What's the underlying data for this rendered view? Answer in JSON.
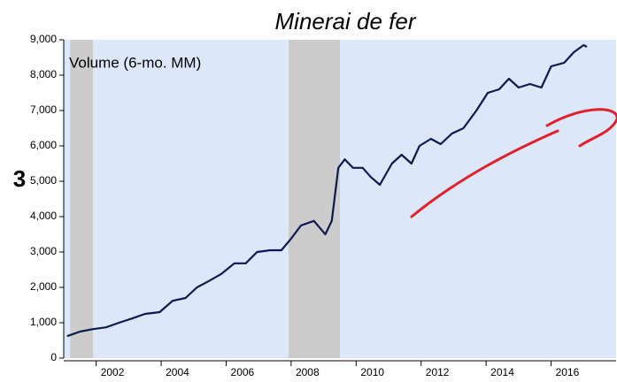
{
  "chart_data": {
    "type": "line",
    "title": "Minerai de fer",
    "legend_label": "Volume (6-mo. MM)",
    "annotation": "3",
    "xlim": [
      2001.0,
      2018.0
    ],
    "ylim": [
      0,
      9000
    ],
    "yticks": [
      0,
      {
        "value": 1000,
        "label": "1,000"
      },
      {
        "value": 2000,
        "label": "2,000"
      },
      {
        "value": 3000,
        "label": "3,000"
      },
      {
        "value": 4000,
        "label": "4,000"
      },
      {
        "value": 5000,
        "label": "5,000"
      },
      {
        "value": 6000,
        "label": "6,000"
      },
      {
        "value": 7000,
        "label": "7,000"
      },
      {
        "value": 8000,
        "label": "8,000"
      },
      {
        "value": 9000,
        "label": "9,000"
      }
    ],
    "xticks": [
      {
        "value": 2002.5,
        "label": "2002"
      },
      {
        "value": 2004.5,
        "label": "2004"
      },
      {
        "value": 2006.5,
        "label": "2006"
      },
      {
        "value": 2008.5,
        "label": "2008"
      },
      {
        "value": 2010.5,
        "label": "2010"
      },
      {
        "value": 2012.5,
        "label": "2012"
      },
      {
        "value": 2014.5,
        "label": "2014"
      },
      {
        "value": 2016.5,
        "label": "2016"
      }
    ],
    "shaded_periods": [
      [
        2001.2,
        2001.9
      ],
      [
        2007.92,
        2009.5
      ]
    ],
    "background": "#dce8fa",
    "shade_color": "#cccccc",
    "series": [
      {
        "name": "Volume (6-mo. MM)",
        "color": "#0c1a4f",
        "x": [
          2001.1,
          2001.5,
          2001.9,
          2002.3,
          2002.7,
          2003.1,
          2003.5,
          2003.95,
          2004.35,
          2004.75,
          2005.1,
          2005.45,
          2005.85,
          2006.25,
          2006.6,
          2006.95,
          2007.35,
          2007.7,
          2008.0,
          2008.3,
          2008.7,
          2009.05,
          2009.25,
          2009.45,
          2009.65,
          2009.9,
          2010.2,
          2010.45,
          2010.73,
          2011.1,
          2011.4,
          2011.7,
          2011.95,
          2012.3,
          2012.6,
          2012.95,
          2013.3,
          2013.7,
          2014.05,
          2014.4,
          2014.7,
          2015.0,
          2015.35,
          2015.7,
          2016.0,
          2016.4,
          2016.7,
          2017.0,
          2017.1
        ],
        "values": [
          620,
          750,
          820,
          870,
          1000,
          1120,
          1250,
          1300,
          1620,
          1700,
          2000,
          2170,
          2380,
          2680,
          2680,
          3000,
          3050,
          3050,
          3380,
          3750,
          3880,
          3500,
          3880,
          5380,
          5620,
          5380,
          5380,
          5120,
          4900,
          5500,
          5750,
          5500,
          6000,
          6200,
          6050,
          6350,
          6500,
          7000,
          7500,
          7600,
          7900,
          7650,
          7750,
          7650,
          8250,
          8350,
          8650,
          8850,
          8800
        ]
      }
    ]
  }
}
